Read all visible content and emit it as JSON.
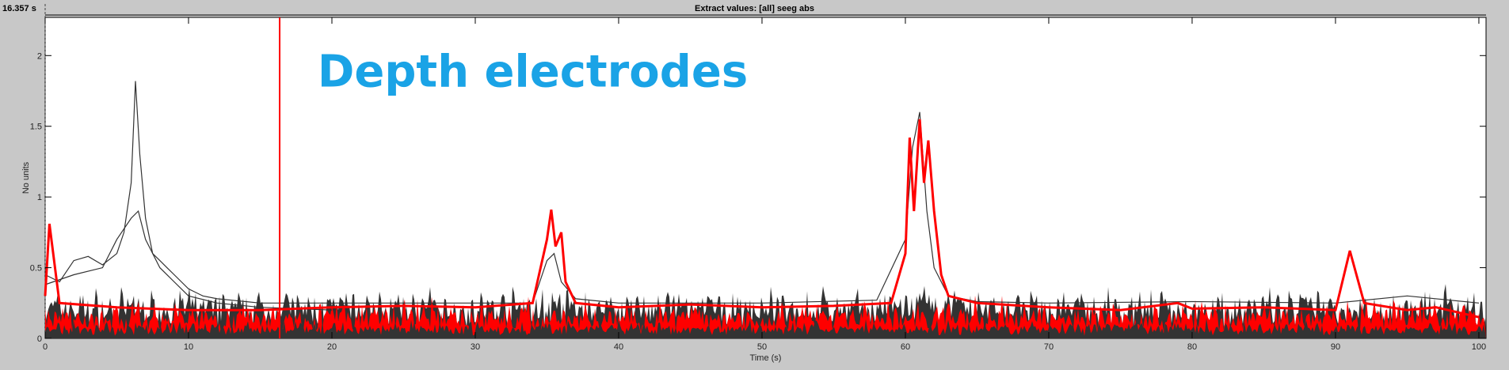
{
  "header": {
    "cursor_time": "16.357 s",
    "title": "Extract values: [all] seeg abs"
  },
  "colors": {
    "background": "#c8c8c8",
    "plot_bg": "#ffffff",
    "trace_dark": "#333333",
    "trace_red": "#ff0000",
    "cursor": "#ff0000",
    "annotation": "#1aa3e6"
  },
  "chart_data": {
    "type": "line",
    "title": "Extract values: [all] seeg abs",
    "xlabel": "Time (s)",
    "ylabel": "No units",
    "xlim": [
      0,
      100.5
    ],
    "ylim": [
      0,
      2.27
    ],
    "x_ticks": [
      0,
      10,
      20,
      30,
      40,
      50,
      60,
      70,
      80,
      90,
      100
    ],
    "y_ticks": [
      0,
      0.5,
      1,
      1.5,
      2
    ],
    "y_tick_labels": [
      "0",
      "0.5",
      "1",
      "1.5",
      "2"
    ],
    "grid": false,
    "cursor_time": 16.357,
    "annotation": {
      "text": "Depth electrodes",
      "x": 19,
      "y": 1.78
    },
    "series": [
      {
        "color": "#333333",
        "x": [
          0,
          1,
          2,
          3,
          4,
          5,
          5.5,
          6,
          6.3,
          6.6,
          7,
          7.5,
          8,
          8.5,
          9,
          10,
          11,
          12,
          13,
          14,
          15,
          16,
          20,
          30,
          34,
          35,
          35.5,
          36,
          37,
          40,
          50,
          58,
          60,
          60.5,
          61,
          61.5,
          62,
          63,
          65,
          70,
          80,
          90,
          95,
          100
        ],
        "y": [
          0.45,
          0.4,
          0.55,
          0.58,
          0.52,
          0.6,
          0.75,
          1.1,
          1.82,
          1.3,
          0.85,
          0.6,
          0.55,
          0.5,
          0.45,
          0.35,
          0.3,
          0.28,
          0.27,
          0.26,
          0.25,
          0.25,
          0.25,
          0.25,
          0.25,
          0.55,
          0.6,
          0.4,
          0.28,
          0.25,
          0.25,
          0.27,
          0.7,
          1.35,
          1.6,
          0.9,
          0.5,
          0.3,
          0.26,
          0.25,
          0.26,
          0.25,
          0.3,
          0.25
        ]
      },
      {
        "color": "#333333",
        "x": [
          0,
          2,
          4,
          5,
          6,
          6.5,
          7,
          8,
          9,
          10,
          12,
          15,
          20
        ],
        "y": [
          0.38,
          0.45,
          0.5,
          0.7,
          0.85,
          0.9,
          0.7,
          0.5,
          0.4,
          0.3,
          0.25,
          0.22,
          0.2
        ]
      },
      {
        "color": "#ff0000",
        "x": [
          0,
          0.3,
          1,
          5,
          10,
          15,
          20,
          25,
          30,
          34,
          35,
          35.3,
          35.6,
          36,
          36.3,
          37,
          40,
          45,
          50,
          55,
          59,
          60,
          60.3,
          60.6,
          61,
          61.3,
          61.6,
          62,
          62.5,
          63,
          65,
          70,
          75,
          79,
          80,
          85,
          90,
          91,
          92,
          95,
          97,
          100
        ],
        "y": [
          0.3,
          0.81,
          0.25,
          0.22,
          0.2,
          0.2,
          0.22,
          0.23,
          0.22,
          0.25,
          0.7,
          0.91,
          0.65,
          0.75,
          0.4,
          0.25,
          0.22,
          0.24,
          0.22,
          0.23,
          0.25,
          0.6,
          1.42,
          0.9,
          1.55,
          1.1,
          1.4,
          0.9,
          0.45,
          0.3,
          0.25,
          0.22,
          0.2,
          0.25,
          0.21,
          0.22,
          0.2,
          0.62,
          0.25,
          0.2,
          0.22,
          0.15
        ]
      }
    ]
  }
}
